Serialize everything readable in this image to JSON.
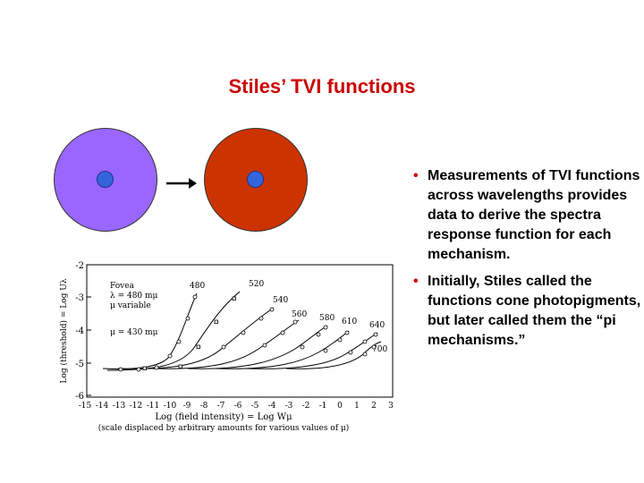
{
  "slide": {
    "title": "Stiles’ TVI functions",
    "disc_colors": {
      "test_field": "#9966ff",
      "adapting_field": "#cc3300",
      "test_spot": "#3366dd"
    },
    "bullets": [
      "Measurements of TVI functions across wavelengths provides data to derive the spectra response function for each mechanism.",
      "Initially, Stiles called the functions cone photopigments, but later called them the “pi mechanisms.”"
    ]
  },
  "figure": {
    "legend": {
      "line1": "Fovea",
      "line2": "λ = 480 mμ",
      "line3": "μ variable",
      "mu_label": "μ = 430 mμ"
    },
    "ylabel": "Log (threshold) = Log Uλ",
    "xlabel": "Log (field intensity) = Log Wμ",
    "xnote": "(scale displaced by arbitrary amounts for various values of μ)",
    "xticks": [
      "-15",
      "-14",
      "-13",
      "-12",
      "-11",
      "-10",
      "-9",
      "-8",
      "-7",
      "-6",
      "-5",
      "-4",
      "-3",
      "-2",
      "-1",
      "0",
      "1",
      "2",
      "3"
    ],
    "yticks": [
      "-2",
      "-3",
      "-4",
      "-5",
      "-6"
    ],
    "curve_labels": [
      "480",
      "520",
      "540",
      "560",
      "580",
      "610",
      "640",
      "700"
    ]
  }
}
